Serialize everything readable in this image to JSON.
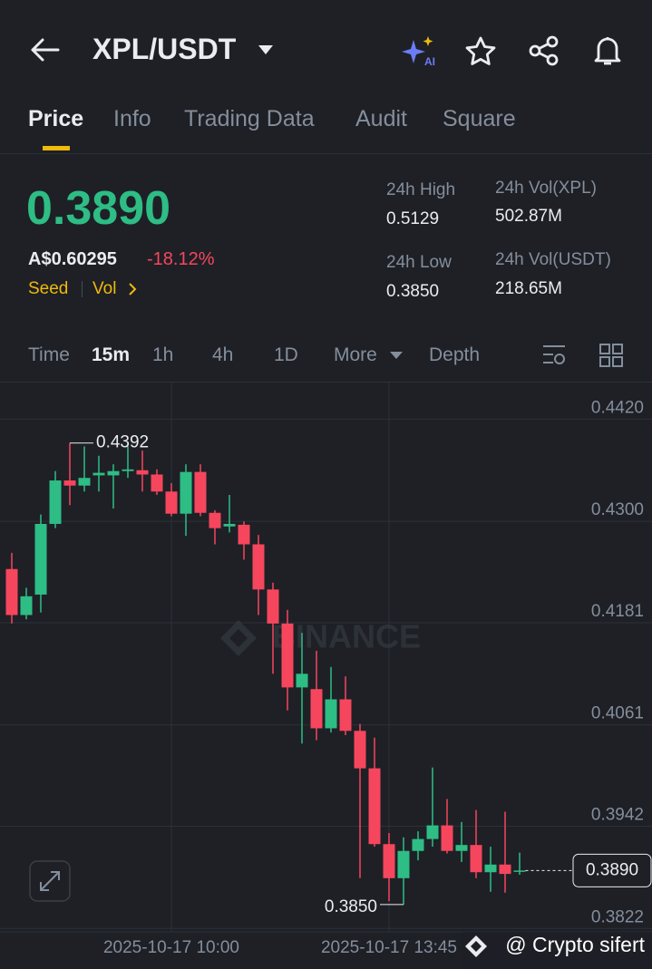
{
  "header": {
    "pair": "XPL/USDT"
  },
  "tabs": [
    "Price",
    "Info",
    "Trading Data",
    "Audit",
    "Square"
  ],
  "price": {
    "last": "0.3890",
    "fiat": "A$0.60295",
    "change": "-18.12%",
    "tag": "Seed",
    "vol": "Vol"
  },
  "stats": [
    {
      "label": "24h High",
      "value": "0.5129"
    },
    {
      "label": "24h Vol(XPL)",
      "value": "502.87M"
    },
    {
      "label": "24h Low",
      "value": "0.3850"
    },
    {
      "label": "24h Vol(USDT)",
      "value": "218.65M"
    }
  ],
  "intervals": [
    "Time",
    "15m",
    "1h",
    "4h",
    "1D",
    "More",
    "Depth"
  ],
  "chart_data": {
    "type": "candlestick",
    "categories": [
      null,
      null,
      null,
      null,
      null,
      null,
      null,
      null,
      null,
      null,
      null,
      "2025-10-17 10:00",
      null,
      null,
      null,
      null,
      null,
      null,
      null,
      null,
      null,
      null,
      null,
      null,
      null,
      null,
      "2025-10-17 13:45",
      null,
      null,
      null,
      null,
      null,
      null,
      null,
      null,
      null
    ],
    "open": [
      0.4244,
      0.419,
      0.4214,
      0.4297,
      0.4348,
      0.4342,
      0.4354,
      0.4354,
      0.4359,
      0.436,
      0.4355,
      0.4335,
      0.4309,
      0.4358,
      0.431,
      0.4294,
      0.4296,
      0.4273,
      0.422,
      0.418,
      0.4105,
      0.4103,
      0.4057,
      0.4091,
      0.4054,
      0.401,
      0.3921,
      0.3881,
      0.3913,
      0.3927,
      0.3943,
      0.3913,
      0.392,
      0.3888,
      0.3897,
      0.3889
    ],
    "high": [
      0.4263,
      0.4222,
      0.4308,
      0.4359,
      0.4392,
      0.4388,
      0.4377,
      0.4367,
      0.4388,
      0.4383,
      0.4361,
      0.4345,
      0.4367,
      0.4367,
      0.4313,
      0.4331,
      0.43,
      0.4284,
      0.4228,
      0.4196,
      0.4169,
      0.4148,
      0.4129,
      0.4118,
      0.4062,
      0.4046,
      0.3934,
      0.3929,
      0.3936,
      0.4011,
      0.3974,
      0.3947,
      0.3961,
      0.3918,
      0.3959,
      0.3911
    ],
    "low": [
      0.418,
      0.4185,
      0.4193,
      0.4292,
      0.4319,
      0.4335,
      0.4335,
      0.4315,
      0.4351,
      0.4335,
      0.4331,
      0.4306,
      0.4283,
      0.4306,
      0.4273,
      0.4287,
      0.4255,
      0.419,
      0.4121,
      0.4078,
      0.4039,
      0.4043,
      0.4052,
      0.4049,
      0.3881,
      0.3918,
      0.3854,
      0.385,
      0.3902,
      0.3918,
      0.391,
      0.39,
      0.3881,
      0.3865,
      0.3864,
      0.3885
    ],
    "close": [
      0.419,
      0.4212,
      0.4297,
      0.4348,
      0.4342,
      0.4351,
      0.4357,
      0.4359,
      0.4361,
      0.4355,
      0.4335,
      0.4309,
      0.4358,
      0.431,
      0.4292,
      0.4297,
      0.4273,
      0.422,
      0.418,
      0.4105,
      0.4121,
      0.4057,
      0.4091,
      0.4054,
      0.401,
      0.3921,
      0.3881,
      0.3913,
      0.3927,
      0.3943,
      0.3913,
      0.392,
      0.3888,
      0.3897,
      0.3886,
      0.389
    ],
    "up_color": "#2ebd85",
    "down_color": "#f6465d",
    "ylim": [
      0.3818,
      0.4463
    ],
    "yticks": [
      {
        "value": 0.442,
        "label": "0.4420"
      },
      {
        "value": 0.43,
        "label": "0.4300"
      },
      0.4181,
      0.4061,
      0.3942,
      0.3822
    ],
    "grid": true,
    "high_label": "0.4392",
    "low_label": "0.3850",
    "last_price_label": "0.3890",
    "watermark": "BINANCE",
    "credit": "@ Crypto sifert"
  }
}
